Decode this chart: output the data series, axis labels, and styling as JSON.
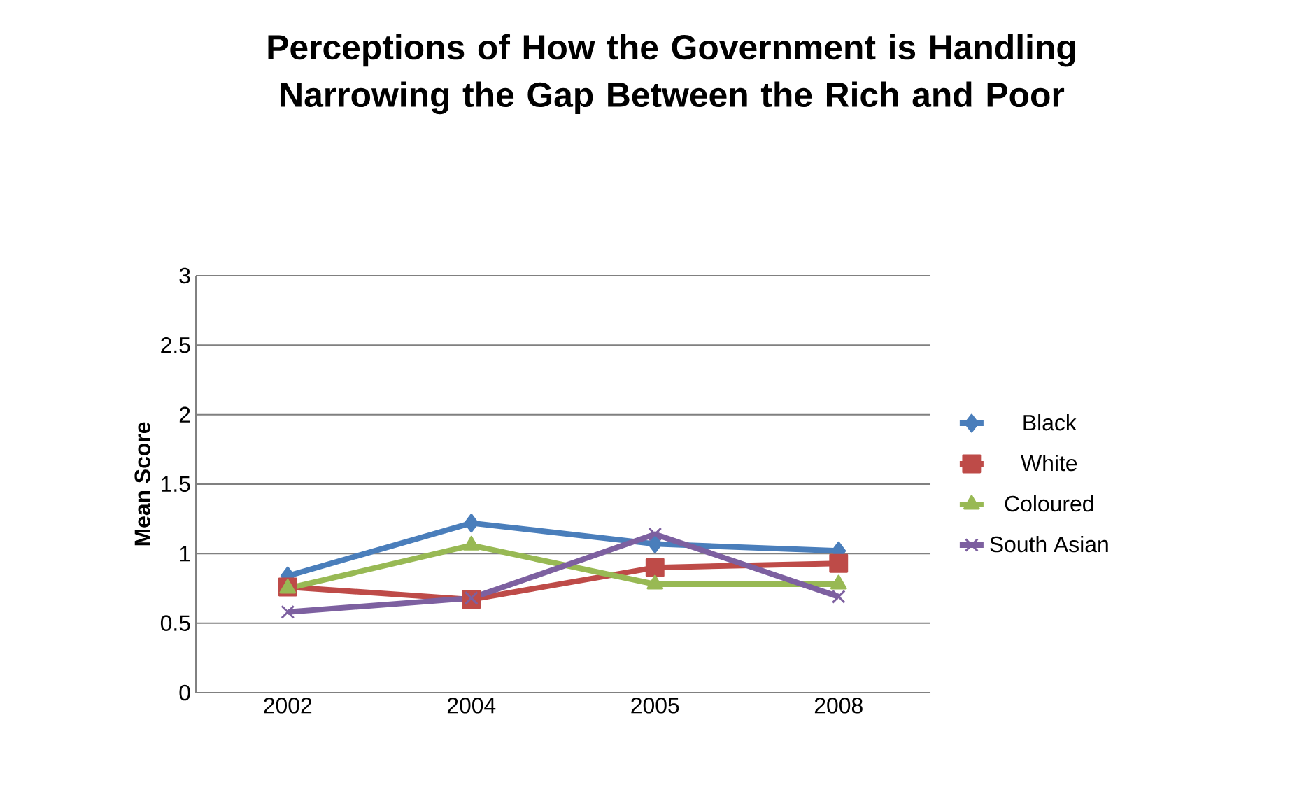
{
  "chart_data": {
    "type": "line",
    "title": "Perceptions of How the Government is Handling Narrowing the Gap Between the Rich and Poor",
    "ylabel": "Mean Score",
    "categories": [
      "2002",
      "2004",
      "2005",
      "2008"
    ],
    "ylim": [
      0,
      3
    ],
    "yticks": [
      0,
      0.5,
      1,
      1.5,
      2,
      2.5,
      3
    ],
    "grid": "y",
    "legend": "right",
    "series": [
      {
        "name": "Black",
        "color": "#4a7ebb",
        "marker": "diamond",
        "values": [
          0.84,
          1.22,
          1.07,
          1.02
        ]
      },
      {
        "name": "White",
        "color": "#be4b48",
        "marker": "square",
        "values": [
          0.76,
          0.67,
          0.9,
          0.93
        ]
      },
      {
        "name": "Coloured",
        "color": "#98b954",
        "marker": "triangle",
        "values": [
          0.75,
          1.06,
          0.78,
          0.78
        ]
      },
      {
        "name": "South Asian",
        "color": "#7d60a0",
        "marker": "cross",
        "values": [
          0.58,
          0.68,
          1.14,
          0.69
        ]
      }
    ]
  }
}
